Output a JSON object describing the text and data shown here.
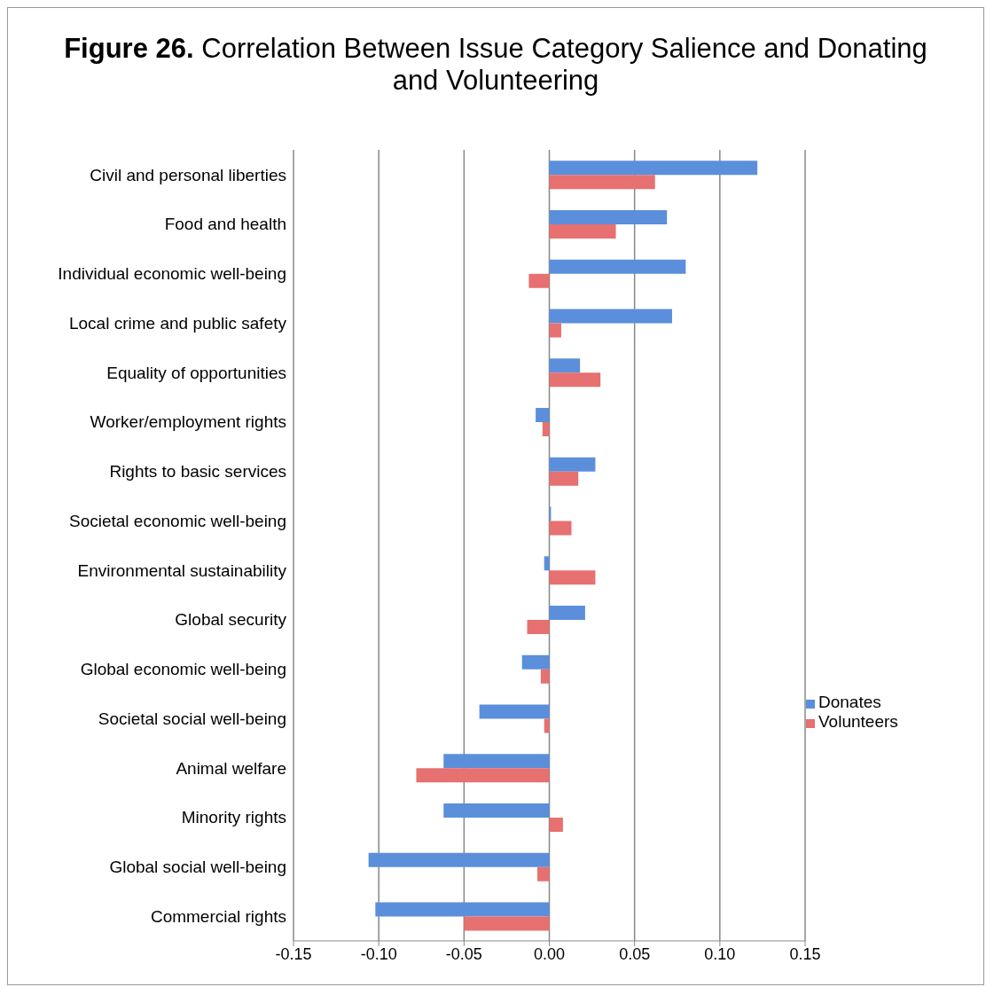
{
  "chart_data": {
    "type": "bar",
    "orientation": "horizontal",
    "title": "Figure 26. Correlation Between Issue Category Salience and Donating and Volunteering",
    "categories": [
      "Civil and personal liberties",
      "Food and health",
      "Individual economic well-being",
      "Local crime and public safety",
      "Equality of opportunities",
      "Worker/employment rights",
      "Rights to basic services",
      "Societal economic well-being",
      "Environmental sustainability",
      "Global security",
      "Global economic well-being",
      "Societal social well-being",
      "Animal welfare",
      "Minority rights",
      "Global social well-being",
      "Commercial rights"
    ],
    "series": [
      {
        "name": "Donates",
        "color": "#5b8fdb",
        "values": [
          0.122,
          0.069,
          0.08,
          0.072,
          0.018,
          -0.008,
          0.027,
          0.001,
          -0.003,
          0.021,
          -0.016,
          -0.041,
          -0.062,
          -0.062,
          -0.106,
          -0.102
        ]
      },
      {
        "name": "Volunteers",
        "color": "#e77070",
        "values": [
          0.062,
          0.039,
          -0.012,
          0.007,
          0.03,
          -0.004,
          0.017,
          0.013,
          0.027,
          -0.013,
          -0.005,
          -0.003,
          -0.078,
          0.008,
          -0.007,
          -0.05
        ]
      }
    ],
    "xlim": [
      -0.15,
      0.15
    ],
    "xticks": [
      {
        "value": -0.15,
        "label": "-0.15"
      },
      {
        "value": -0.1,
        "label": "-0.10"
      },
      {
        "value": -0.05,
        "label": "-0.05"
      },
      {
        "value": 0,
        "label": "0.00"
      },
      {
        "value": 0.05,
        "label": "0.05"
      },
      {
        "value": 0.1,
        "label": "0.10"
      },
      {
        "value": 0.15,
        "label": "0.15"
      }
    ],
    "grid": "x",
    "legend": "right"
  }
}
